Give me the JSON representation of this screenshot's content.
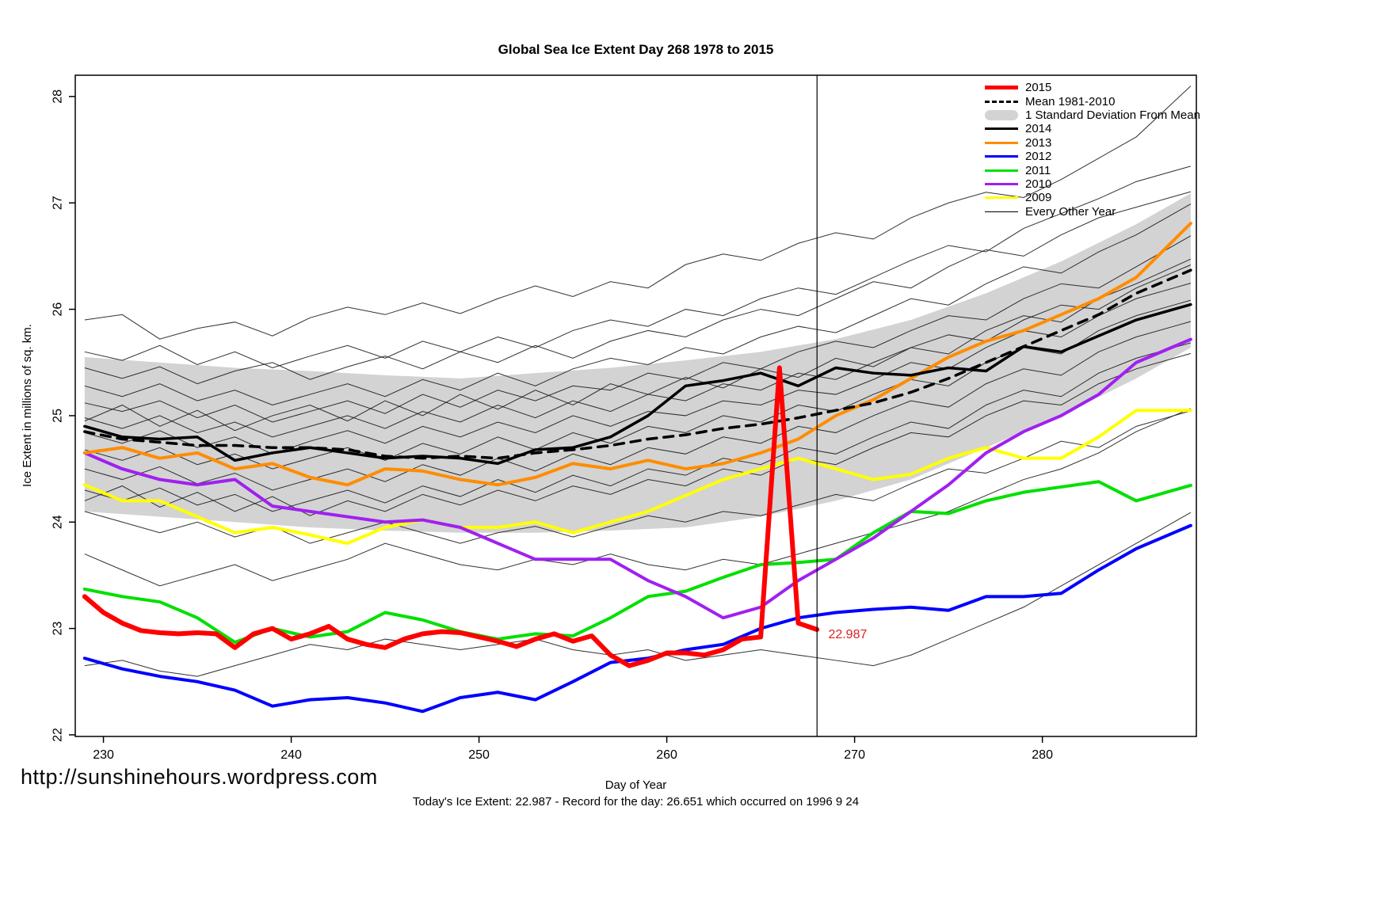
{
  "footer": {
    "url": "http://sunshinehours.wordpress.com",
    "caption": "Today's Ice Extent: 22.987  - Record for the day: 26.651 which occurred on 1996 9 24"
  },
  "chart_data": {
    "type": "line",
    "title": "Global Sea Ice Extent Day 268 1978 to 2015",
    "xlabel": "Day of Year",
    "ylabel": "Ice Extent in millions of sq. km.",
    "xlim": [
      228.5,
      288.2
    ],
    "ylim": [
      21.985,
      28.2
    ],
    "x_ticks": [
      230,
      240,
      250,
      260,
      270,
      280
    ],
    "y_ticks": [
      22,
      23,
      24,
      25,
      26,
      27,
      28
    ],
    "grid": false,
    "legend_position": "top-right",
    "vline_day": 268,
    "annotation": {
      "day": 268.6,
      "value": 22.94,
      "text": "22.987",
      "color": "#dd2222"
    },
    "band": {
      "label": "1 Standard Deviation From Mean",
      "color": "#d3d3d3",
      "x": [
        229,
        233,
        237,
        241,
        245,
        249,
        253,
        257,
        261,
        265,
        269,
        273,
        277,
        281,
        285,
        287
      ],
      "upper": [
        25.55,
        25.5,
        25.45,
        25.42,
        25.38,
        25.35,
        25.4,
        25.45,
        25.52,
        25.6,
        25.72,
        25.9,
        26.15,
        26.45,
        26.8,
        27.0
      ],
      "lower": [
        24.1,
        24.05,
        24.0,
        23.95,
        23.92,
        23.9,
        23.9,
        23.92,
        23.95,
        24.05,
        24.2,
        24.4,
        24.7,
        25.0,
        25.35,
        25.55
      ]
    },
    "x_main": [
      229,
      231,
      233,
      235,
      237,
      239,
      241,
      243,
      245,
      247,
      249,
      251,
      253,
      255,
      257,
      259,
      261,
      263,
      265,
      267,
      269,
      271,
      273,
      275,
      277,
      279,
      281,
      283,
      285,
      287
    ],
    "background_style": {
      "label": "Every Other Year",
      "color": "#1a1a1a",
      "width": 1
    },
    "background_lines": [
      [
        25.9,
        25.95,
        25.72,
        25.82,
        25.88,
        25.75,
        25.92,
        26.02,
        25.95,
        26.06,
        25.96,
        26.1,
        26.22,
        26.12,
        26.26,
        26.2,
        26.42,
        26.52,
        26.46,
        26.62,
        26.72,
        26.66,
        26.86,
        27.0,
        27.1,
        27.05,
        27.22,
        27.42,
        27.62,
        27.95
      ],
      [
        25.6,
        25.52,
        25.66,
        25.48,
        25.6,
        25.45,
        25.56,
        25.66,
        25.54,
        25.7,
        25.6,
        25.74,
        25.64,
        25.8,
        25.9,
        25.84,
        26.0,
        25.94,
        26.1,
        26.2,
        26.14,
        26.3,
        26.46,
        26.6,
        26.54,
        26.76,
        26.9,
        27.04,
        27.2,
        27.3
      ],
      [
        25.45,
        25.35,
        25.46,
        25.3,
        25.42,
        25.5,
        25.34,
        25.46,
        25.56,
        25.44,
        25.6,
        25.5,
        25.66,
        25.54,
        25.7,
        25.8,
        25.74,
        25.9,
        26.0,
        25.94,
        26.1,
        26.26,
        26.2,
        26.4,
        26.56,
        26.5,
        26.7,
        26.86,
        26.96,
        27.06
      ],
      [
        25.28,
        25.18,
        25.3,
        25.14,
        25.24,
        25.1,
        25.2,
        25.3,
        25.18,
        25.34,
        25.24,
        25.4,
        25.28,
        25.44,
        25.54,
        25.48,
        25.64,
        25.58,
        25.74,
        25.84,
        25.78,
        25.94,
        26.1,
        26.04,
        26.24,
        26.4,
        26.34,
        26.54,
        26.7,
        26.9
      ],
      [
        25.12,
        25.04,
        25.14,
        24.98,
        25.1,
        24.94,
        25.04,
        25.14,
        25.02,
        25.2,
        25.08,
        25.24,
        25.14,
        25.28,
        25.24,
        25.4,
        25.34,
        25.5,
        25.44,
        25.6,
        25.7,
        25.64,
        25.8,
        25.94,
        25.9,
        26.1,
        26.24,
        26.2,
        26.4,
        26.6
      ],
      [
        24.98,
        24.88,
        25.0,
        24.84,
        24.94,
        24.8,
        24.9,
        25.0,
        24.88,
        25.04,
        24.94,
        25.1,
        24.98,
        25.14,
        25.04,
        25.2,
        25.14,
        25.3,
        25.24,
        25.4,
        25.34,
        25.5,
        25.64,
        25.58,
        25.8,
        25.94,
        25.88,
        26.1,
        26.24,
        26.4
      ],
      [
        24.84,
        24.74,
        24.86,
        24.7,
        24.8,
        24.64,
        24.76,
        24.86,
        24.74,
        24.9,
        24.8,
        24.94,
        24.84,
        25.0,
        24.9,
        25.04,
        25.0,
        25.14,
        25.1,
        25.24,
        25.2,
        25.34,
        25.5,
        25.44,
        25.64,
        25.8,
        25.74,
        25.94,
        26.1,
        26.2
      ],
      [
        24.68,
        24.58,
        24.7,
        24.54,
        24.64,
        24.5,
        24.6,
        24.7,
        24.58,
        24.74,
        24.64,
        24.8,
        24.68,
        24.84,
        24.74,
        24.9,
        24.84,
        25.0,
        24.94,
        25.1,
        25.04,
        25.2,
        25.34,
        25.28,
        25.5,
        25.64,
        25.58,
        25.8,
        25.94,
        26.04
      ],
      [
        24.5,
        24.4,
        24.52,
        24.36,
        24.46,
        24.3,
        24.4,
        24.5,
        24.38,
        24.54,
        24.44,
        24.6,
        24.48,
        24.64,
        24.54,
        24.7,
        24.64,
        24.8,
        24.74,
        24.9,
        24.84,
        25.0,
        25.14,
        25.08,
        25.3,
        25.44,
        25.38,
        25.6,
        25.74,
        25.84
      ],
      [
        24.3,
        24.2,
        24.32,
        24.16,
        24.26,
        24.1,
        24.2,
        24.3,
        24.18,
        24.34,
        24.24,
        24.4,
        24.28,
        24.44,
        24.34,
        24.5,
        24.44,
        24.6,
        24.54,
        24.7,
        24.64,
        24.8,
        24.94,
        24.88,
        25.1,
        25.24,
        25.18,
        25.4,
        25.54,
        25.64
      ],
      [
        24.1,
        24.0,
        23.9,
        24.0,
        23.86,
        23.96,
        23.8,
        23.9,
        24.0,
        23.9,
        23.8,
        23.9,
        23.96,
        23.86,
        23.96,
        24.06,
        24.0,
        24.1,
        24.06,
        24.16,
        24.26,
        24.2,
        24.36,
        24.5,
        24.46,
        24.6,
        24.76,
        24.7,
        24.9,
        25.0
      ],
      [
        23.7,
        23.55,
        23.4,
        23.5,
        23.6,
        23.45,
        23.55,
        23.65,
        23.8,
        23.7,
        23.6,
        23.55,
        23.65,
        23.6,
        23.7,
        23.6,
        23.55,
        23.65,
        23.6,
        23.7,
        23.8,
        23.9,
        24.0,
        24.1,
        24.25,
        24.4,
        24.5,
        24.65,
        24.85,
        25.0
      ],
      [
        22.65,
        22.7,
        22.6,
        22.55,
        22.65,
        22.75,
        22.85,
        22.8,
        22.9,
        22.85,
        22.8,
        22.85,
        22.9,
        22.8,
        22.75,
        22.8,
        22.7,
        22.75,
        22.8,
        22.75,
        22.7,
        22.65,
        22.75,
        22.9,
        23.05,
        23.2,
        23.4,
        23.6,
        23.8,
        24.0
      ],
      [
        24.95,
        25.1,
        24.9,
        25.05,
        24.86,
        25.0,
        25.1,
        24.95,
        25.14,
        25.0,
        25.2,
        25.06,
        25.24,
        25.1,
        25.3,
        25.2,
        25.36,
        25.26,
        25.44,
        25.36,
        25.54,
        25.46,
        25.64,
        25.76,
        25.7,
        25.9,
        26.04,
        26.0,
        26.2,
        26.35
      ],
      [
        24.2,
        24.34,
        24.14,
        24.28,
        24.1,
        24.24,
        24.06,
        24.2,
        24.1,
        24.26,
        24.16,
        24.3,
        24.2,
        24.34,
        24.26,
        24.4,
        24.34,
        24.5,
        24.44,
        24.6,
        24.54,
        24.7,
        24.84,
        24.8,
        25.0,
        25.14,
        25.1,
        25.3,
        25.44,
        25.54
      ]
    ],
    "series": [
      {
        "name": "2009",
        "color": "#ffff00",
        "width": 4,
        "y": [
          24.35,
          24.2,
          24.2,
          24.05,
          23.9,
          23.95,
          23.88,
          23.8,
          23.95,
          24.02,
          23.95,
          23.95,
          24.0,
          23.9,
          24.0,
          24.1,
          24.25,
          24.4,
          24.5,
          24.6,
          24.5,
          24.4,
          24.45,
          24.6,
          24.7,
          24.6,
          24.6,
          24.8,
          25.05,
          25.05
        ]
      },
      {
        "name": "2011",
        "color": "#00e000",
        "width": 4,
        "y": [
          23.37,
          23.3,
          23.25,
          23.1,
          22.87,
          23.0,
          22.92,
          22.97,
          23.15,
          23.08,
          22.97,
          22.9,
          22.95,
          22.93,
          23.1,
          23.3,
          23.35,
          23.48,
          23.6,
          23.62,
          23.65,
          23.9,
          24.1,
          24.08,
          24.2,
          24.28,
          24.33,
          24.38,
          24.2,
          24.3
        ]
      },
      {
        "name": "2012",
        "color": "#0000ff",
        "width": 4,
        "y": [
          22.72,
          22.62,
          22.55,
          22.5,
          22.42,
          22.27,
          22.33,
          22.35,
          22.3,
          22.22,
          22.35,
          22.4,
          22.33,
          22.5,
          22.68,
          22.72,
          22.8,
          22.85,
          23.0,
          23.1,
          23.15,
          23.18,
          23.2,
          23.17,
          23.3,
          23.3,
          23.33,
          23.55,
          23.75,
          23.9
        ]
      },
      {
        "name": "2010",
        "color": "#a020f0",
        "width": 4,
        "y": [
          24.65,
          24.5,
          24.4,
          24.35,
          24.4,
          24.15,
          24.1,
          24.05,
          24.0,
          24.02,
          23.95,
          23.8,
          23.65,
          23.65,
          23.65,
          23.45,
          23.3,
          23.1,
          23.2,
          23.45,
          23.65,
          23.85,
          24.1,
          24.35,
          24.65,
          24.85,
          25.0,
          25.2,
          25.5,
          25.65
        ]
      },
      {
        "name": "2013",
        "color": "#ff8c00",
        "width": 4,
        "y": [
          24.65,
          24.7,
          24.6,
          24.65,
          24.5,
          24.55,
          24.42,
          24.35,
          24.5,
          24.48,
          24.4,
          24.35,
          24.42,
          24.55,
          24.5,
          24.58,
          24.5,
          24.55,
          24.65,
          24.78,
          25.0,
          25.15,
          25.35,
          25.55,
          25.7,
          25.8,
          25.95,
          26.1,
          26.3,
          26.65
        ]
      },
      {
        "name": "2014",
        "color": "#000000",
        "width": 3.5,
        "y": [
          24.9,
          24.8,
          24.78,
          24.8,
          24.58,
          24.65,
          24.7,
          24.65,
          24.6,
          24.62,
          24.6,
          24.55,
          24.68,
          24.7,
          24.8,
          25.0,
          25.28,
          25.33,
          25.4,
          25.28,
          25.45,
          25.4,
          25.38,
          25.45,
          25.42,
          25.65,
          25.6,
          25.75,
          25.9,
          26.0
        ]
      },
      {
        "name": "Mean 1981-2010",
        "color": "#000000",
        "width": 3.5,
        "dash": "12 9",
        "y": [
          24.85,
          24.78,
          24.75,
          24.72,
          24.72,
          24.7,
          24.7,
          24.68,
          24.62,
          24.6,
          24.62,
          24.6,
          24.65,
          24.68,
          24.72,
          24.78,
          24.82,
          24.88,
          24.92,
          24.98,
          25.05,
          25.12,
          25.22,
          25.35,
          25.5,
          25.65,
          25.8,
          25.95,
          26.15,
          26.3
        ]
      },
      {
        "name": "2015",
        "color": "#ff0000",
        "width": 6,
        "x": [
          229,
          230,
          231,
          232,
          233,
          234,
          235,
          236,
          237,
          238,
          239,
          240,
          241,
          242,
          243,
          244,
          245,
          246,
          247,
          248,
          249,
          250,
          251,
          252,
          253,
          254,
          255,
          256,
          257,
          258,
          259,
          260,
          261,
          262,
          263,
          264,
          265,
          266,
          267,
          268
        ],
        "y": [
          23.3,
          23.15,
          23.05,
          22.98,
          22.96,
          22.95,
          22.96,
          22.95,
          22.82,
          22.95,
          23.0,
          22.9,
          22.95,
          23.02,
          22.9,
          22.85,
          22.82,
          22.9,
          22.95,
          22.97,
          22.96,
          22.92,
          22.88,
          22.83,
          22.9,
          22.95,
          22.88,
          22.93,
          22.75,
          22.65,
          22.7,
          22.77,
          22.77,
          22.75,
          22.8,
          22.9,
          22.92,
          25.45,
          23.05,
          22.99
        ]
      }
    ],
    "legend": [
      {
        "label": "2015",
        "swatch": "line",
        "color": "#ff0000",
        "width": 5
      },
      {
        "label": "Mean 1981-2010",
        "swatch": "dashed",
        "color": "#000000",
        "width": 3
      },
      {
        "label": "1 Standard Deviation From Mean",
        "swatch": "band",
        "color": "#d3d3d3"
      },
      {
        "label": "2014",
        "swatch": "line",
        "color": "#000000",
        "width": 3
      },
      {
        "label": "2013",
        "swatch": "line",
        "color": "#ff8c00",
        "width": 3
      },
      {
        "label": "2012",
        "swatch": "line",
        "color": "#0000ff",
        "width": 3
      },
      {
        "label": "2011",
        "swatch": "line",
        "color": "#00e000",
        "width": 3
      },
      {
        "label": "2010",
        "swatch": "line",
        "color": "#a020f0",
        "width": 3
      },
      {
        "label": "2009",
        "swatch": "line",
        "color": "#ffff00",
        "width": 3
      },
      {
        "label": "Every Other Year",
        "swatch": "line",
        "color": "#000000",
        "width": 1
      }
    ]
  }
}
